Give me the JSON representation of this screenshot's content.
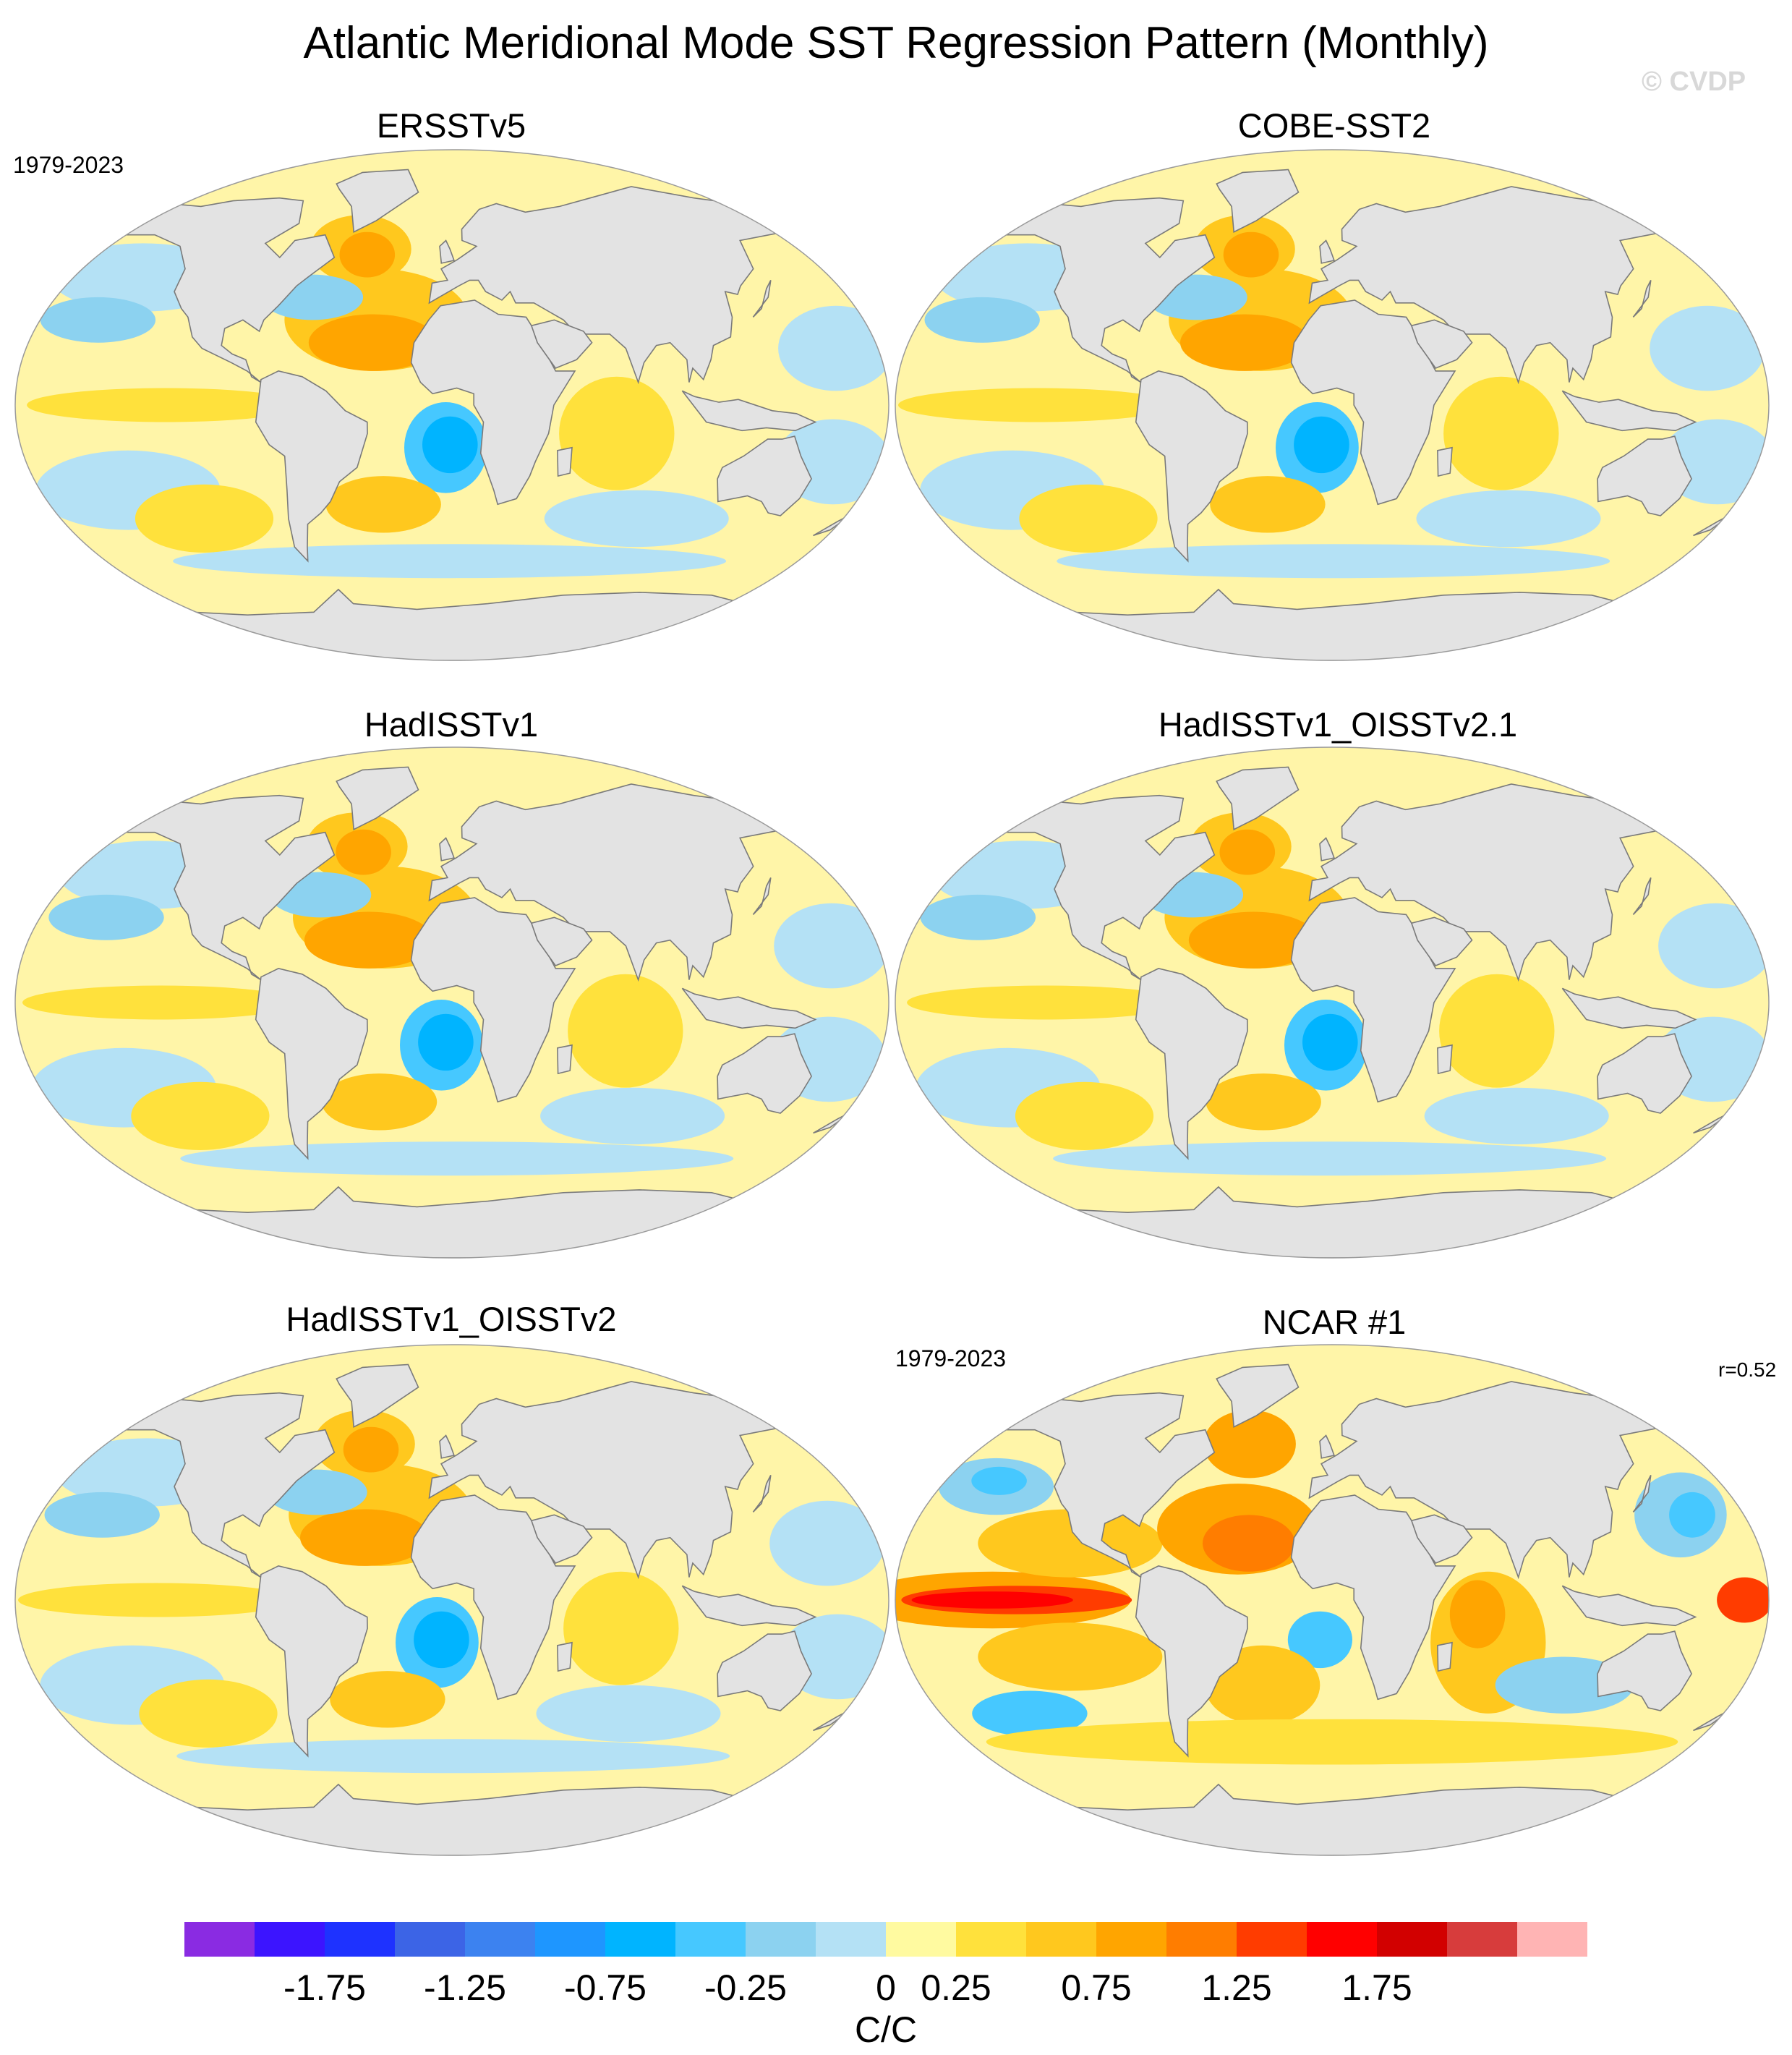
{
  "title": "Atlantic Meridional Mode SST Regression Pattern (Monthly)",
  "watermark": "© CVDP",
  "colors": {
    "land": "#e3e3e3",
    "coast": "#7a7a7a",
    "zero": "#fffaa0",
    "ocean_background": "#fff5a8"
  },
  "panels": [
    {
      "title": "ERSSTv5",
      "left_label": "1979-2023",
      "right_label": ""
    },
    {
      "title": "COBE-SST2",
      "left_label": "",
      "right_label": ""
    },
    {
      "title": "HadISSTv1",
      "left_label": "",
      "right_label": ""
    },
    {
      "title": "HadISSTv1_OISSTv2.1",
      "left_label": "",
      "right_label": ""
    },
    {
      "title": "HadISSTv1_OISSTv2",
      "left_label": "",
      "right_label": ""
    },
    {
      "title": "NCAR #1",
      "left_label": "1979-2023",
      "right_label": "r=0.52"
    }
  ],
  "colorbar": {
    "units": "C/C",
    "tick_labels": [
      "-1.75",
      "-1.25",
      "-0.75",
      "-0.25",
      "0",
      "0.25",
      "0.75",
      "1.25",
      "1.75"
    ],
    "colors": [
      "#8a2be2",
      "#3c14ff",
      "#1e32ff",
      "#3c64e6",
      "#3c82f0",
      "#1e96ff",
      "#00b4ff",
      "#46c8ff",
      "#8cd2f0",
      "#b4e1f5",
      "#fffaa0",
      "#ffe13c",
      "#ffc81e",
      "#ffa500",
      "#ff7d00",
      "#ff3c00",
      "#ff0000",
      "#d20000",
      "#d73c3c",
      "#ffb4b4"
    ]
  }
}
